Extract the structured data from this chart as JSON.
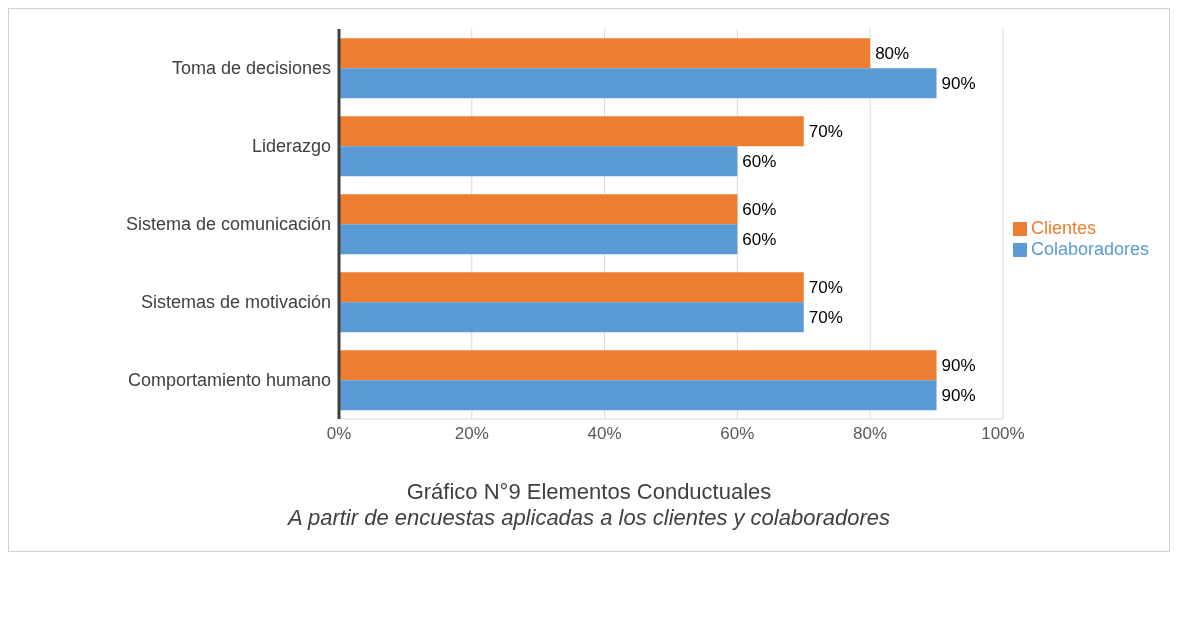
{
  "chart_data": {
    "type": "bar",
    "orientation": "horizontal",
    "title": "Gráfico N°9 Elementos Conductuales",
    "subtitle": "A partir de encuestas aplicadas a los clientes y colaboradores",
    "categories": [
      "Toma de decisiones",
      "Liderazgo",
      "Sistema de comunicación",
      "Sistemas de motivación",
      "Comportamiento humano"
    ],
    "series": [
      {
        "name": "Clientes",
        "color": "#ed7d31",
        "values": [
          80,
          70,
          60,
          70,
          90
        ],
        "value_labels": [
          "80%",
          "70%",
          "60%",
          "70%",
          "90%"
        ]
      },
      {
        "name": "Colaboradores",
        "color": "#5b9bd5",
        "values": [
          90,
          60,
          60,
          70,
          90
        ],
        "value_labels": [
          "90%",
          "60%",
          "60%",
          "70%",
          "90%"
        ]
      }
    ],
    "xlim": [
      0,
      100
    ],
    "xticks": [
      {
        "value": 0,
        "label": "0%"
      },
      {
        "value": 20,
        "label": "20%"
      },
      {
        "value": 40,
        "label": "40%"
      },
      {
        "value": 60,
        "label": "60%"
      },
      {
        "value": 80,
        "label": "80%"
      },
      {
        "value": 100,
        "label": "100%"
      }
    ],
    "grid": "x",
    "legend": "right"
  }
}
